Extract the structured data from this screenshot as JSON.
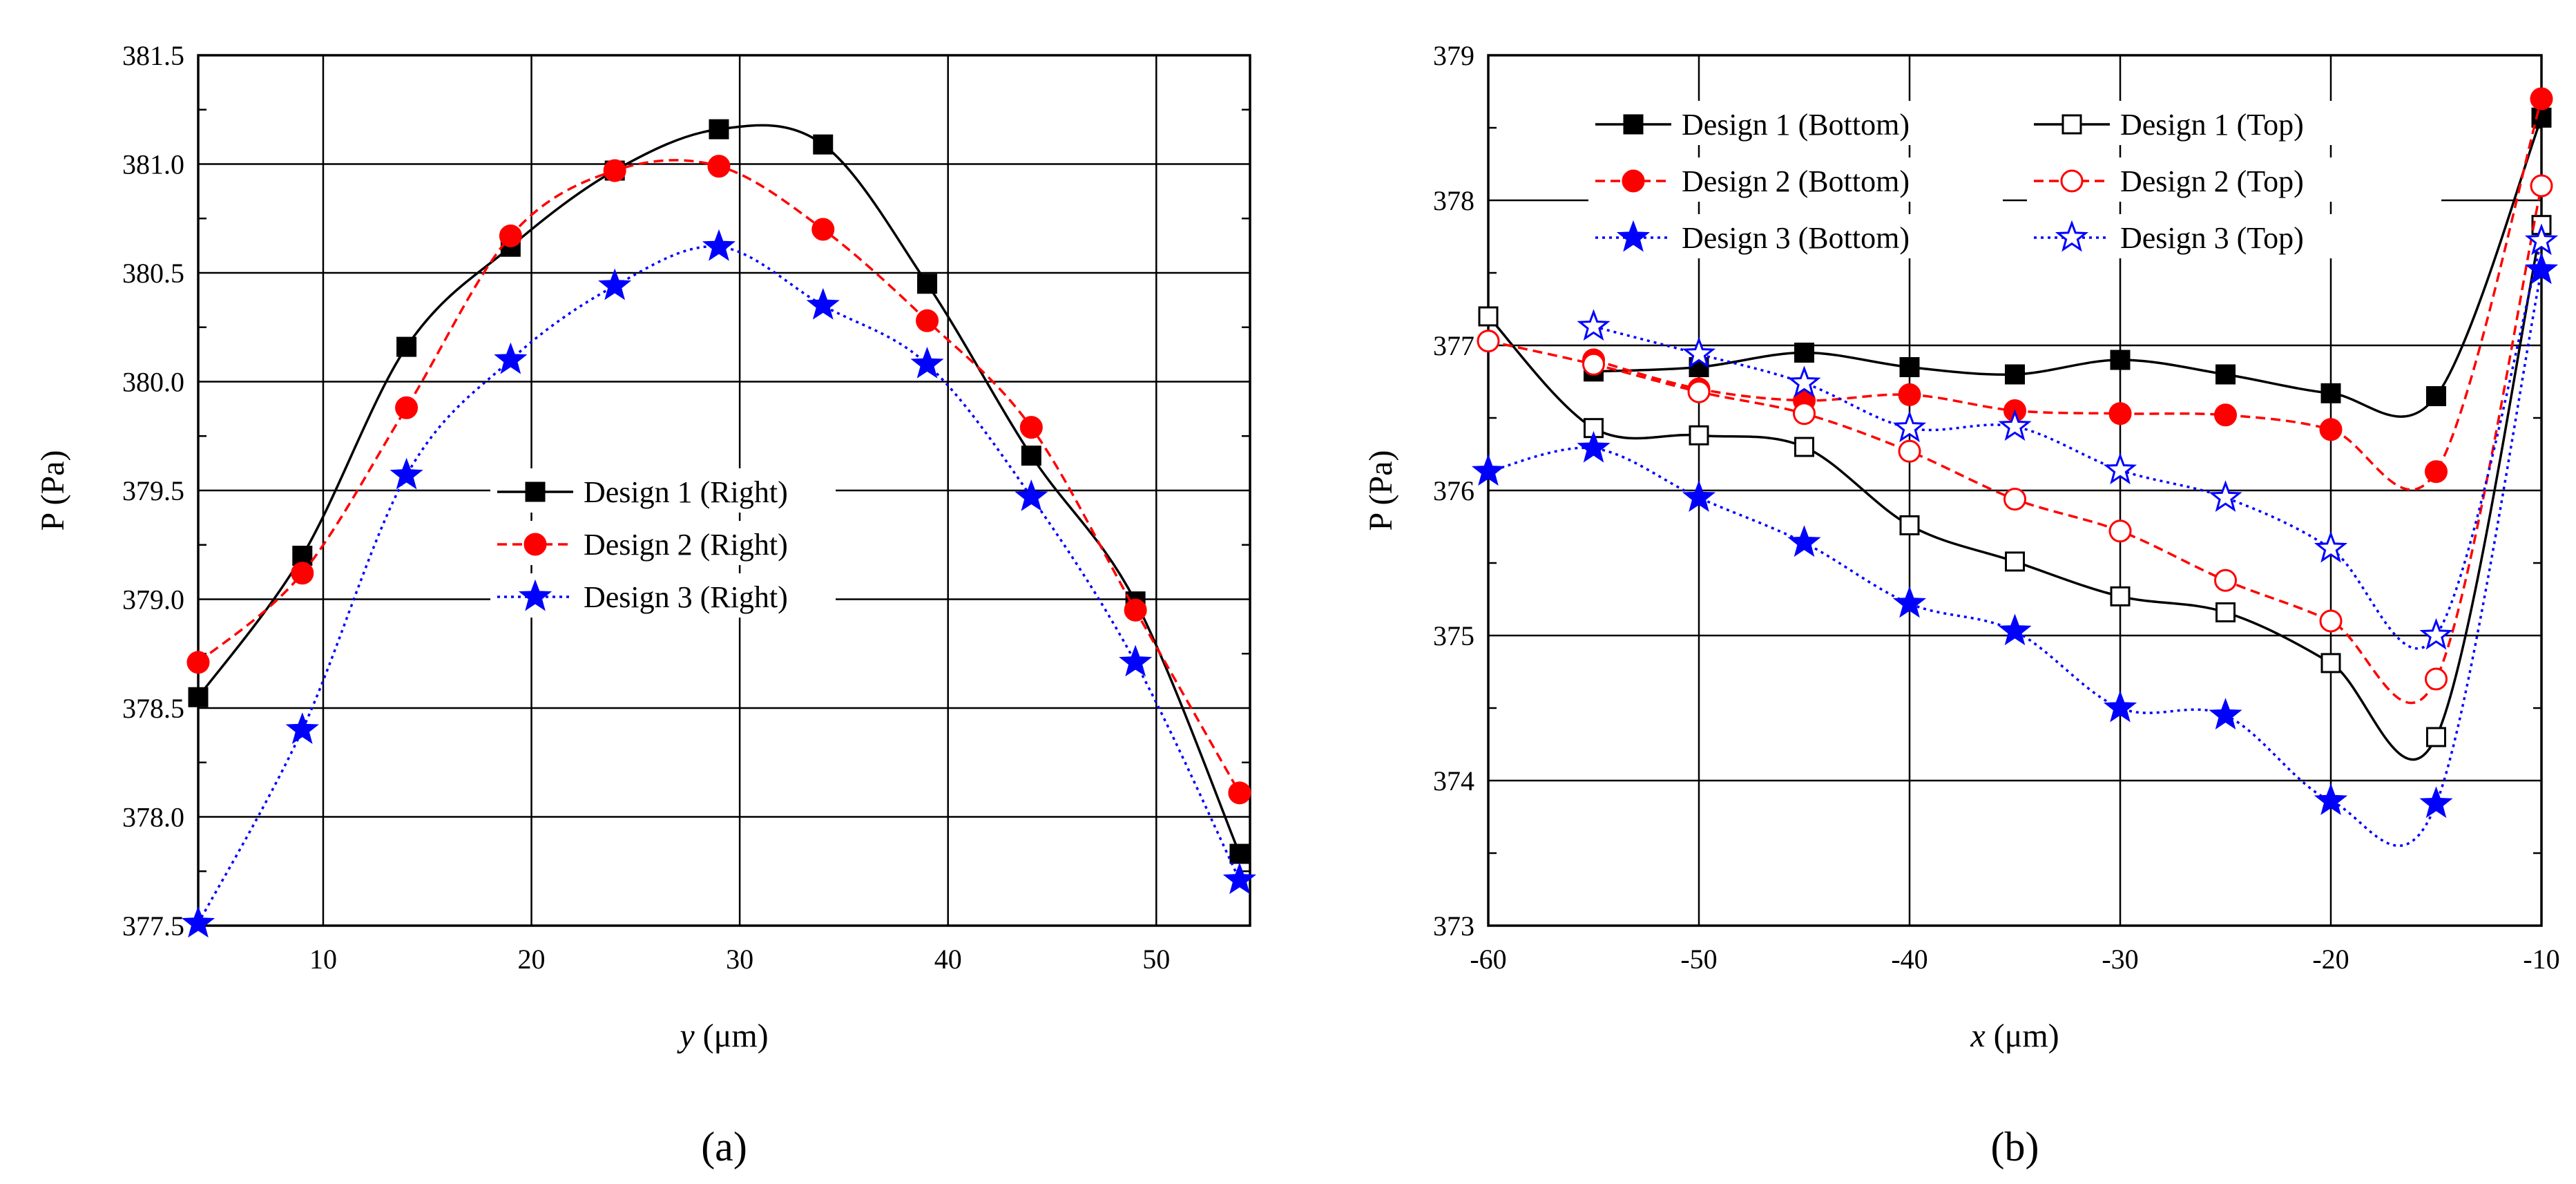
{
  "chart_data": [
    {
      "id": "a",
      "type": "line",
      "caption": "(a)",
      "xlabel_var": "y",
      "xlabel_unit": " (μm)",
      "ylabel": "P (Pa)",
      "xlim": [
        4,
        54.5
      ],
      "ylim": [
        377.5,
        381.5
      ],
      "xticks": [
        10,
        20,
        30,
        40,
        50
      ],
      "yticks": [
        377.5,
        378.0,
        378.5,
        379.0,
        379.5,
        380.0,
        380.5,
        381.0,
        381.5
      ],
      "ytick_labels": [
        "377.5",
        "378.0",
        "378.5",
        "379.0",
        "379.5",
        "380.0",
        "380.5",
        "381.0",
        "381.5"
      ],
      "grid": true,
      "legend_position": "center",
      "series": [
        {
          "name": "Design 1 (Right)",
          "color": "#000000",
          "marker": "square-filled",
          "dash": "solid",
          "x": [
            4,
            9,
            14,
            19,
            24,
            29,
            34,
            39,
            44,
            49,
            54
          ],
          "y": [
            378.55,
            379.2,
            380.16,
            380.62,
            380.97,
            381.16,
            381.09,
            380.45,
            379.66,
            378.99,
            377.83
          ]
        },
        {
          "name": "Design 2 (Right)",
          "color": "#ff0000",
          "marker": "circle-filled",
          "dash": "dashed",
          "x": [
            4,
            9,
            14,
            19,
            24,
            29,
            34,
            39,
            44,
            49,
            54
          ],
          "y": [
            378.71,
            379.12,
            379.88,
            380.67,
            380.97,
            380.99,
            380.7,
            380.28,
            379.79,
            378.95,
            378.11
          ]
        },
        {
          "name": "Design 3 (Right)",
          "color": "#0000ff",
          "marker": "star-filled",
          "dash": "dotted",
          "x": [
            4,
            9,
            14,
            19,
            24,
            29,
            34,
            39,
            44,
            49,
            54
          ],
          "y": [
            377.51,
            378.4,
            379.57,
            380.1,
            380.44,
            380.62,
            380.35,
            380.08,
            379.47,
            378.71,
            377.71
          ]
        }
      ]
    },
    {
      "id": "b",
      "type": "line",
      "caption": "(b)",
      "xlabel_var": "x",
      "xlabel_unit": " (μm)",
      "ylabel": "P (Pa)",
      "xlim": [
        -60,
        -10
      ],
      "ylim": [
        373,
        379
      ],
      "xticks": [
        -60,
        -50,
        -40,
        -30,
        -20,
        -10
      ],
      "yticks": [
        373,
        374,
        375,
        376,
        377,
        378,
        379
      ],
      "ytick_labels": [
        "373",
        "374",
        "375",
        "376",
        "377",
        "378",
        "379"
      ],
      "grid": true,
      "legend_position": "top",
      "series": [
        {
          "name": "Design 1 (Bottom)",
          "color": "#000000",
          "marker": "square-filled",
          "dash": "solid",
          "x": [
            -55,
            -50,
            -45,
            -40,
            -35,
            -30,
            -25,
            -20,
            -15,
            -10
          ],
          "y": [
            376.82,
            376.85,
            376.95,
            376.85,
            376.8,
            376.9,
            376.8,
            376.67,
            376.65,
            378.57
          ]
        },
        {
          "name": "Design 1 (Top)",
          "color": "#000000",
          "marker": "square-open",
          "dash": "solid",
          "x": [
            -60,
            -55,
            -50,
            -45,
            -40,
            -35,
            -30,
            -25,
            -20,
            -15,
            -10
          ],
          "y": [
            377.2,
            376.43,
            376.38,
            376.3,
            375.76,
            375.51,
            375.27,
            375.16,
            374.81,
            374.3,
            377.83
          ]
        },
        {
          "name": "Design 2 (Bottom)",
          "color": "#ff0000",
          "marker": "circle-filled",
          "dash": "dashed",
          "x": [
            -55,
            -50,
            -45,
            -40,
            -35,
            -30,
            -25,
            -20,
            -15,
            -10
          ],
          "y": [
            376.9,
            376.7,
            376.62,
            376.66,
            376.55,
            376.53,
            376.52,
            376.42,
            376.13,
            378.7
          ]
        },
        {
          "name": "Design 2 (Top)",
          "color": "#ff0000",
          "marker": "circle-open",
          "dash": "dashed",
          "x": [
            -60,
            -55,
            -50,
            -45,
            -40,
            -35,
            -30,
            -25,
            -20,
            -15,
            -10
          ],
          "y": [
            377.03,
            376.87,
            376.68,
            376.53,
            376.27,
            375.94,
            375.72,
            375.38,
            375.1,
            374.7,
            378.1
          ]
        },
        {
          "name": "Design 3 (Bottom)",
          "color": "#0000ff",
          "marker": "star-filled",
          "dash": "dotted",
          "x": [
            -60,
            -55,
            -50,
            -45,
            -40,
            -35,
            -30,
            -25,
            -20,
            -15,
            -10
          ],
          "y": [
            376.13,
            376.29,
            375.95,
            375.64,
            375.22,
            375.03,
            374.5,
            374.45,
            373.86,
            373.84,
            377.52
          ]
        },
        {
          "name": "Design 3 (Top)",
          "color": "#0000ff",
          "marker": "star-open",
          "dash": "dotted",
          "x": [
            -55,
            -50,
            -45,
            -40,
            -35,
            -30,
            -25,
            -20,
            -15,
            -10
          ],
          "y": [
            377.13,
            376.94,
            376.74,
            376.43,
            376.44,
            376.14,
            375.95,
            375.6,
            375.0,
            377.72
          ]
        }
      ]
    }
  ]
}
